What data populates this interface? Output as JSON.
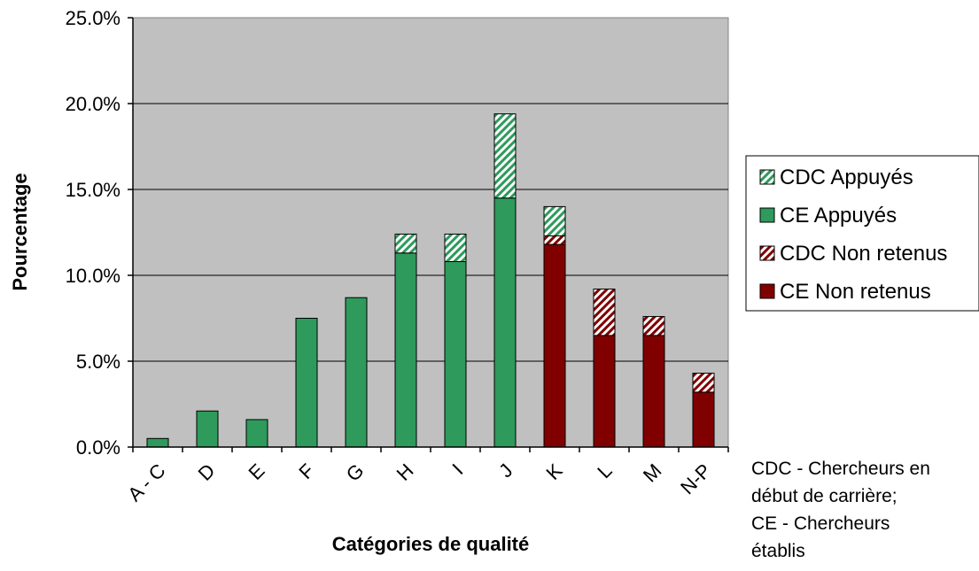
{
  "chart_data": {
    "type": "bar",
    "stacked": true,
    "title": "",
    "xlabel": "Catégories de qualité",
    "ylabel": "Pourcentage",
    "ylim": [
      0,
      25
    ],
    "yticks": [
      "0.0%",
      "5.0%",
      "10.0%",
      "15.0%",
      "20.0%",
      "25.0%"
    ],
    "categories": [
      "A - C",
      "D",
      "E",
      "F",
      "G",
      "H",
      "I",
      "J",
      "K",
      "L",
      "M",
      "N-P"
    ],
    "series": [
      {
        "name": "CE Appuyés",
        "color": "#2e9a5c",
        "pattern": "solid",
        "values": [
          0.5,
          2.1,
          1.6,
          7.5,
          8.7,
          11.3,
          10.8,
          14.5,
          0,
          0,
          0,
          0
        ]
      },
      {
        "name": "CDC Appuyés",
        "color": "#2e9a5c",
        "pattern": "hatched",
        "values": [
          0,
          0,
          0,
          0,
          0,
          1.1,
          1.6,
          4.9,
          0,
          0,
          0,
          0
        ]
      },
      {
        "name": "CE Non retenus",
        "color": "#800000",
        "pattern": "solid",
        "values": [
          0,
          0,
          0,
          0,
          0,
          0,
          0,
          0,
          11.8,
          6.5,
          6.5,
          3.2
        ]
      },
      {
        "name": "CDC Non retenus",
        "color": "#800000",
        "pattern": "hatched",
        "values": [
          0,
          0,
          0,
          0,
          0,
          0,
          0,
          0,
          0.5,
          2.7,
          1.1,
          1.1
        ]
      },
      {
        "name": "CDC Appuyés (top)",
        "color": "#2e9a5c",
        "pattern": "hatched",
        "values": [
          0,
          0,
          0,
          0,
          0,
          0,
          0,
          0,
          1.7,
          0,
          0,
          0
        ]
      }
    ],
    "legend": {
      "position": "right",
      "entries": [
        {
          "label": "CDC Appuyés",
          "color": "#2e9a5c",
          "pattern": "hatched"
        },
        {
          "label": "CE Appuyés",
          "color": "#2e9a5c",
          "pattern": "solid"
        },
        {
          "label": "CDC Non retenus",
          "color": "#800000",
          "pattern": "hatched"
        },
        {
          "label": "CE Non retenus",
          "color": "#800000",
          "pattern": "solid"
        }
      ]
    },
    "plot_background": "#c0c0c0",
    "grid": true
  },
  "note_lines": [
    "CDC - Chercheurs en",
    "début de carrière;",
    "CE - Chercheurs",
    "établis"
  ]
}
